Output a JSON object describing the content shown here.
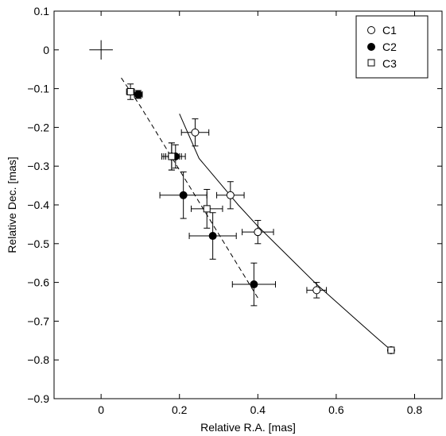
{
  "chart_data": {
    "type": "scatter",
    "title": "",
    "xlabel": "Relative R.A. [mas]",
    "ylabel": "Relative Dec. [mas]",
    "xlim": [
      -0.12,
      0.87
    ],
    "ylim": [
      -0.9,
      0.1
    ],
    "x_ticks": [
      0,
      0.2,
      0.4,
      0.6,
      0.8
    ],
    "x_tick_labels": [
      "0",
      "0.2",
      "0.4",
      "0.6",
      "0.8"
    ],
    "y_ticks": [
      0.1,
      0,
      -0.1,
      -0.2,
      -0.3,
      -0.4,
      -0.5,
      -0.6,
      -0.7,
      -0.8,
      -0.9
    ],
    "y_tick_labels": [
      "0.1",
      "0",
      "−0.1",
      "−0.2",
      "−0.3",
      "−0.4",
      "−0.5",
      "−0.6",
      "−0.7",
      "−0.8",
      "−0.9"
    ],
    "grid": false,
    "legend_position": "top-right",
    "reference_cross": {
      "x": 0,
      "y": 0,
      "half_width": 0.03,
      "half_height": 0.025
    },
    "series": [
      {
        "name": "C1",
        "marker": "open-circle",
        "color": "#000000",
        "points": [
          {
            "x": 0.74,
            "y": -0.775,
            "xerr": 0.0,
            "yerr": 0.0
          },
          {
            "x": 0.55,
            "y": -0.62,
            "xerr": 0.025,
            "yerr": 0.02
          },
          {
            "x": 0.4,
            "y": -0.47,
            "xerr": 0.04,
            "yerr": 0.03
          },
          {
            "x": 0.33,
            "y": -0.375,
            "xerr": 0.035,
            "yerr": 0.035
          },
          {
            "x": 0.18,
            "y": -0.275,
            "xerr": 0.02,
            "yerr": 0.035
          },
          {
            "x": 0.24,
            "y": -0.213,
            "xerr": 0.035,
            "yerr": 0.035
          },
          {
            "x": 0.095,
            "y": -0.115,
            "xerr": 0.01,
            "yerr": 0.01
          }
        ]
      },
      {
        "name": "C2",
        "marker": "filled-circle",
        "color": "#000000",
        "points": [
          {
            "x": 0.39,
            "y": -0.605,
            "xerr": 0.055,
            "yerr": 0.055
          },
          {
            "x": 0.285,
            "y": -0.48,
            "xerr": 0.06,
            "yerr": 0.06
          },
          {
            "x": 0.21,
            "y": -0.375,
            "xerr": 0.06,
            "yerr": 0.06
          },
          {
            "x": 0.19,
            "y": -0.275,
            "xerr": 0.025,
            "yerr": 0.03
          },
          {
            "x": 0.095,
            "y": -0.115,
            "xerr": 0.01,
            "yerr": 0.01
          }
        ]
      },
      {
        "name": "C3",
        "marker": "open-square",
        "color": "#000000",
        "points": [
          {
            "x": 0.74,
            "y": -0.775,
            "xerr": 0.0,
            "yerr": 0.0
          },
          {
            "x": 0.27,
            "y": -0.41,
            "xerr": 0.04,
            "yerr": 0.05
          },
          {
            "x": 0.18,
            "y": -0.275,
            "xerr": 0.025,
            "yerr": 0.035
          },
          {
            "x": 0.075,
            "y": -0.108,
            "xerr": 0.01,
            "yerr": 0.02
          }
        ]
      }
    ],
    "fits": [
      {
        "style": "solid",
        "color": "#000000",
        "x": [
          0.74,
          0.7,
          0.65,
          0.6,
          0.55,
          0.5,
          0.45,
          0.4,
          0.35,
          0.3,
          0.25,
          0.2
        ],
        "y": [
          -0.775,
          -0.74,
          -0.695,
          -0.65,
          -0.605,
          -0.555,
          -0.505,
          -0.455,
          -0.4,
          -0.34,
          -0.28,
          -0.165
        ]
      },
      {
        "style": "dashed",
        "color": "#000000",
        "x": [
          0.4,
          0.3,
          0.2,
          0.1,
          0.05
        ],
        "y": [
          -0.64,
          -0.475,
          -0.31,
          -0.145,
          -0.07
        ]
      }
    ]
  }
}
